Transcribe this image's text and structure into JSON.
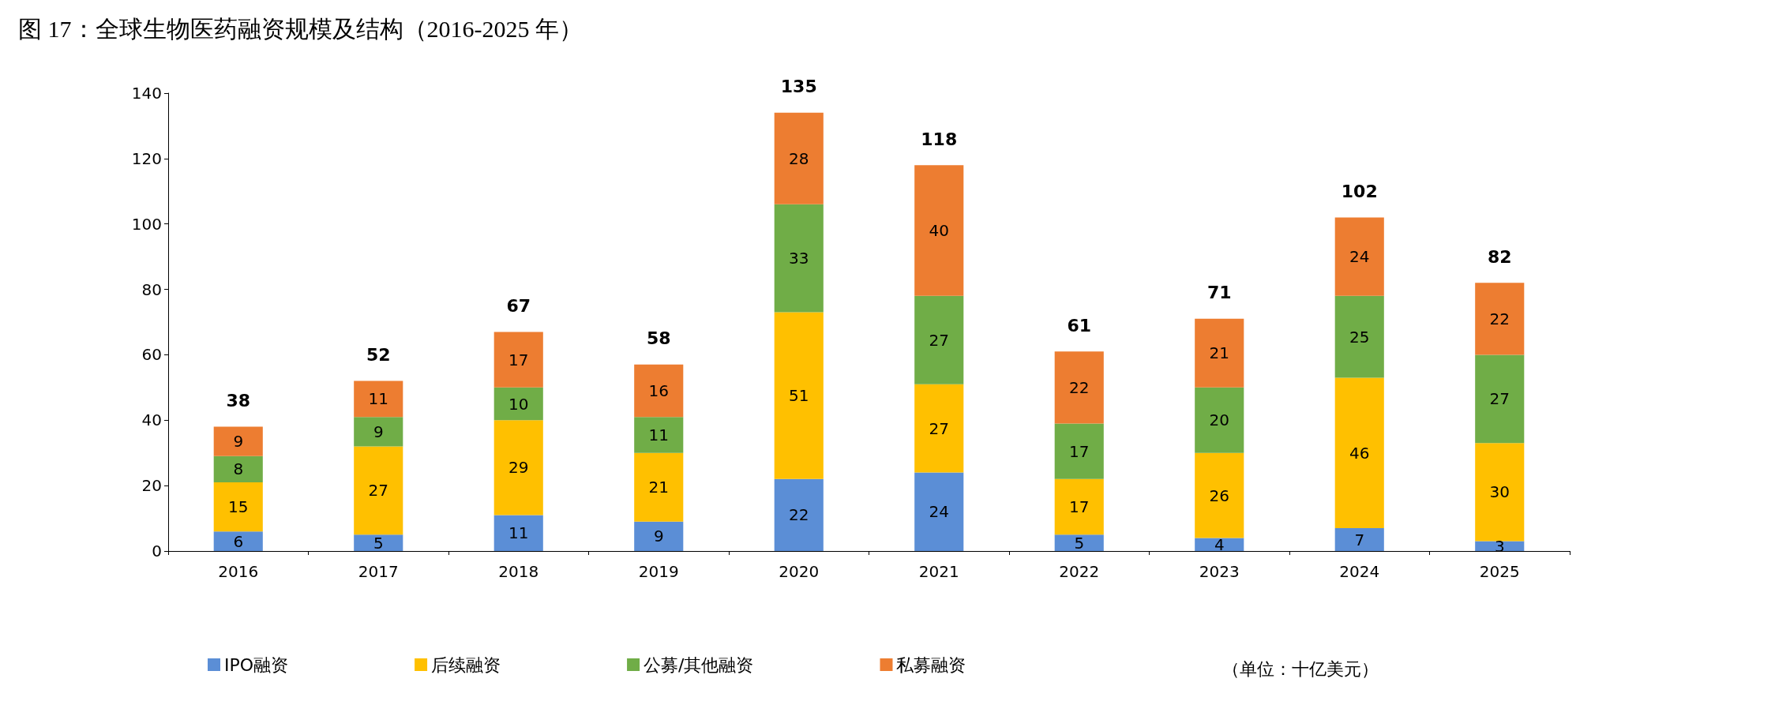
{
  "chart_data": {
    "type": "bar",
    "title": "图 17：全球生物医药融资规模及结构（2016-2025 年）",
    "categories": [
      "2016",
      "2017",
      "2018",
      "2019",
      "2020",
      "2021",
      "2022",
      "2023",
      "2024",
      "2025"
    ],
    "stacked": true,
    "series": [
      {
        "name": "IPO融资",
        "color": "#5b8ed6",
        "values": [
          6,
          5,
          11,
          9,
          22,
          24,
          5,
          4,
          7,
          3
        ]
      },
      {
        "name": "后续融资",
        "color": "#ffc000",
        "values": [
          15,
          27,
          29,
          21,
          51,
          27,
          17,
          26,
          46,
          30
        ]
      },
      {
        "name": "公募/其他融资",
        "color": "#70ad47",
        "values": [
          8,
          9,
          10,
          11,
          33,
          27,
          17,
          20,
          25,
          27
        ]
      },
      {
        "name": "私募融资",
        "color": "#ed7d31",
        "values": [
          9,
          11,
          17,
          16,
          28,
          40,
          22,
          21,
          24,
          22
        ]
      }
    ],
    "totals": [
      "38",
      "52",
      "67",
      "58",
      "135",
      "118",
      "61",
      "71",
      "102",
      "82"
    ],
    "data_labels": true,
    "ylim": [
      0,
      140
    ],
    "yticks": [
      0,
      20,
      40,
      60,
      80,
      100,
      120,
      140
    ],
    "grid": false,
    "legend": "bottom",
    "annotations": [
      "（单位：十亿美元）"
    ]
  }
}
